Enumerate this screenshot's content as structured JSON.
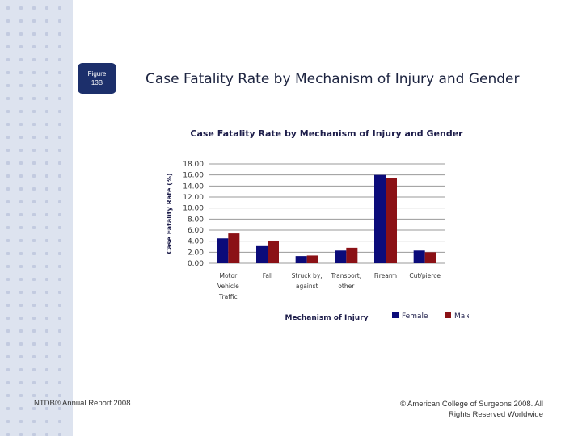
{
  "slide": {
    "badge_line1": "Figure",
    "badge_line2": "13B",
    "title": "Case Fatality Rate by Mechanism of Injury and Gender",
    "footer_left": "NTDB® Annual Report 2008",
    "footer_right_line1": "© American College of Surgeons 2008.  All",
    "footer_right_line2": "Rights Reserved Worldwide"
  },
  "colors": {
    "female": "#0b0b7a",
    "male": "#8b1116",
    "badge": "#1c2f6b",
    "sidebar": "#dde3ef"
  },
  "chart_data": {
    "type": "bar",
    "title": "Case Fatality Rate by Mechanism of Injury and Gender",
    "xlabel": "Mechanism of Injury",
    "ylabel": "Case Fatality Rate (%)",
    "ylim": [
      0,
      18
    ],
    "yticks": [
      "0.00",
      "2.00",
      "4.00",
      "6.00",
      "8.00",
      "10.00",
      "12.00",
      "14.00",
      "16.00",
      "18.00"
    ],
    "categories": [
      [
        "Motor",
        "Vehicle",
        "Traffic"
      ],
      [
        "Fall"
      ],
      [
        "Struck by,",
        "against"
      ],
      [
        "Transport,",
        "other"
      ],
      [
        "Firearm"
      ],
      [
        "Cut/pierce"
      ]
    ],
    "series": [
      {
        "name": "Female",
        "values": [
          4.5,
          3.1,
          1.3,
          2.3,
          16.0,
          2.3
        ]
      },
      {
        "name": "Male",
        "values": [
          5.4,
          4.1,
          1.4,
          2.8,
          15.4,
          2.0
        ]
      }
    ],
    "legend_position": "bottom-right",
    "grid": true
  }
}
